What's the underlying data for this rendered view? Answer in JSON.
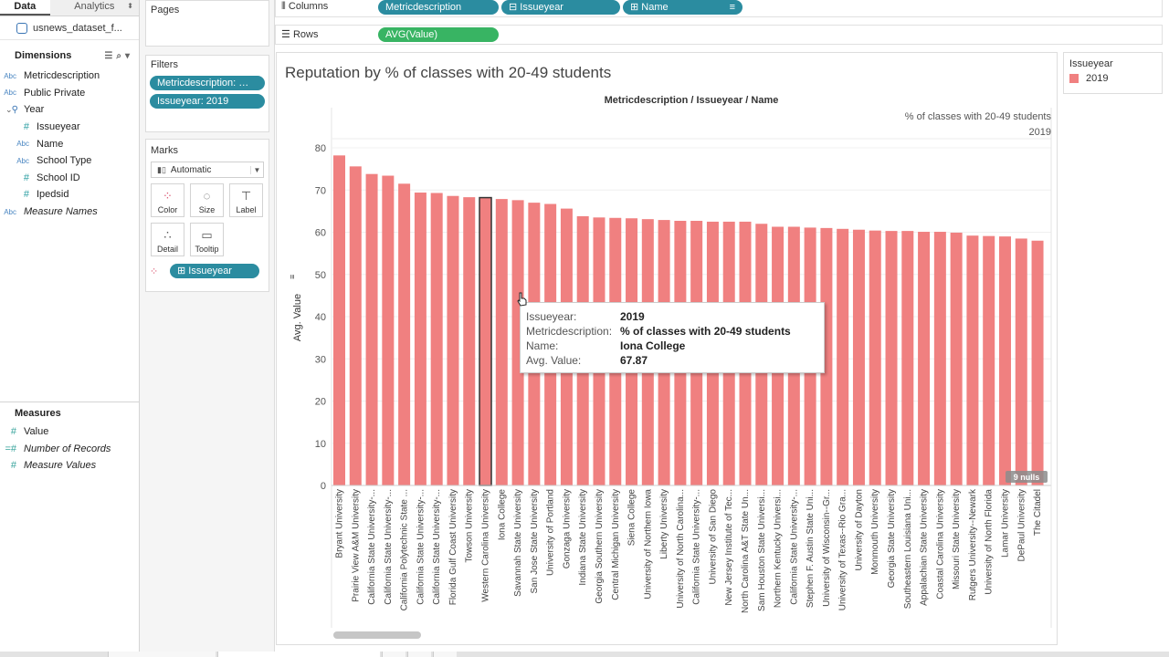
{
  "pane": {
    "tab_data": "Data",
    "tab_analytics": "Analytics",
    "datasource": "usnews_dataset_f...",
    "dimensions_title": "Dimensions",
    "dimensions": [
      {
        "type": "Abc",
        "label": "Metricdescription"
      },
      {
        "type": "Abc",
        "label": "Public Private"
      }
    ],
    "year_folder": "Year",
    "year_children": [
      {
        "type": "#",
        "label": "Issueyear"
      },
      {
        "type": "Abc",
        "label": "Name"
      },
      {
        "type": "Abc",
        "label": "School Type"
      },
      {
        "type": "#",
        "label": "School ID"
      },
      {
        "type": "#",
        "label": "Ipedsid"
      }
    ],
    "measure_names": "Measure Names",
    "measures_title": "Measures",
    "measures": [
      {
        "type": "#",
        "label": "Value"
      },
      {
        "type": "=#",
        "label": "Number of Records"
      },
      {
        "type": "#",
        "label": "Measure Values"
      }
    ]
  },
  "cards": {
    "pages": "Pages",
    "filters": "Filters",
    "filter_pills": [
      "Metricdescription: % ...",
      "Issueyear: 2019"
    ],
    "marks": "Marks",
    "mark_type": "Automatic",
    "mark_buttons": [
      "Color",
      "Size",
      "Label",
      "Detail",
      "Tooltip"
    ],
    "marks_pill": "Issueyear"
  },
  "shelves": {
    "columns_label": "Columns",
    "rows_label": "Rows",
    "columns_pills": [
      "Metricdescription",
      "Issueyear",
      "Name"
    ],
    "rows_pill": "AVG(Value)"
  },
  "viz": {
    "title": "Reputation by % of classes with 20-49 students",
    "header_path": "Metricdescription / Issueyear / Name",
    "header_metric": "% of classes with 20-49 students",
    "header_year": "2019",
    "nulls_badge": "9 nulls"
  },
  "legend": {
    "title": "Issueyear",
    "item": "2019",
    "color": "#f08080"
  },
  "tooltip": {
    "rows": [
      {
        "k": "Issueyear:",
        "v": "2019"
      },
      {
        "k": "Metricdescription:",
        "v": "% of classes with 20-49 students"
      },
      {
        "k": "Name:",
        "v": "Iona College"
      },
      {
        "k": "Avg. Value:",
        "v": "67.87"
      }
    ]
  },
  "chart_data": {
    "type": "bar",
    "ylabel": "Avg. Value",
    "ylim": [
      0,
      80
    ],
    "yticks": [
      0,
      10,
      20,
      30,
      40,
      50,
      60,
      70,
      80
    ],
    "bar_color": "#f08080",
    "highlighted": "Western Carolina University",
    "categories": [
      "Bryant University",
      "Prairie View A&M University",
      "California State University-...",
      "California State University-...",
      "California Polytechnic State ...",
      "California State University-...",
      "California State University-...",
      "Florida Gulf Coast University",
      "Towson University",
      "Western Carolina University",
      "Iona College",
      "Savannah State University",
      "San Jose State University",
      "University of Portland",
      "Gonzaga University",
      "Indiana State University",
      "Georgia Southern University",
      "Central Michigan University",
      "Siena College",
      "University of Northern Iowa",
      "Liberty University",
      "University of North Carolina...",
      "California State University-...",
      "University of San Diego",
      "New Jersey Institute of Tec...",
      "North Carolina A&T State Un...",
      "Sam Houston State Universi...",
      "Northern Kentucky Universi...",
      "California State University-...",
      "Stephen F. Austin State Uni...",
      "University of Wisconsin--Gr...",
      "University of Texas--Rio Gra...",
      "University of Dayton",
      "Monmouth University",
      "Georgia State University",
      "Southeastern Louisiana Uni...",
      "Appalachian State University",
      "Coastal Carolina University",
      "Missouri State University",
      "Rutgers University--Newark",
      "University of North Florida",
      "Lamar University",
      "DePaul University",
      "The Citadel"
    ],
    "values": [
      78.2,
      75.6,
      73.8,
      73.4,
      71.5,
      69.4,
      69.3,
      68.6,
      68.3,
      68.2,
      67.87,
      67.6,
      67.0,
      66.7,
      65.6,
      63.8,
      63.5,
      63.4,
      63.3,
      63.1,
      62.9,
      62.7,
      62.7,
      62.5,
      62.5,
      62.5,
      62.0,
      61.3,
      61.3,
      61.1,
      61.0,
      60.8,
      60.6,
      60.4,
      60.3,
      60.3,
      60.1,
      60.1,
      59.9,
      59.2,
      59.1,
      59.0,
      58.5,
      58.0
    ]
  }
}
